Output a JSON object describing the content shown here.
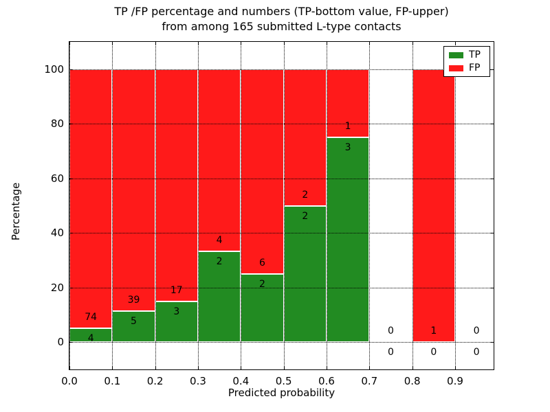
{
  "chart_data": {
    "type": "bar",
    "stacked": true,
    "title_lines": [
      "TP /FP percentage and numbers (TP-bottom value, FP-upper)",
      "from among 165 submitted L-type contacts"
    ],
    "title": "TP /FP percentage and numbers (TP-bottom value, FP-upper)\nfrom among 165 submitted L-type contacts",
    "xlabel": "Predicted probability",
    "ylabel": "Percentage",
    "xlim": [
      0.0,
      1.0
    ],
    "ylim": [
      -10,
      110
    ],
    "x_ticks": [
      "0.0",
      "0.1",
      "0.2",
      "0.3",
      "0.4",
      "0.5",
      "0.6",
      "0.7",
      "0.8",
      "0.9"
    ],
    "y_ticks": [
      "0",
      "20",
      "40",
      "60",
      "80",
      "100"
    ],
    "grid": "dotted",
    "legend_position": "upper right",
    "total_contacts": 165,
    "legend": [
      {
        "label": "TP",
        "color": "#228b22"
      },
      {
        "label": "FP",
        "color": "#ff1a1a"
      }
    ],
    "bins": [
      {
        "range": [
          0.0,
          0.1
        ],
        "tp": 4,
        "fp": 74
      },
      {
        "range": [
          0.1,
          0.2
        ],
        "tp": 5,
        "fp": 39
      },
      {
        "range": [
          0.2,
          0.3
        ],
        "tp": 3,
        "fp": 17
      },
      {
        "range": [
          0.3,
          0.4
        ],
        "tp": 2,
        "fp": 4
      },
      {
        "range": [
          0.4,
          0.5
        ],
        "tp": 2,
        "fp": 6
      },
      {
        "range": [
          0.5,
          0.6
        ],
        "tp": 2,
        "fp": 2
      },
      {
        "range": [
          0.6,
          0.7
        ],
        "tp": 3,
        "fp": 1
      },
      {
        "range": [
          0.7,
          0.8
        ],
        "tp": 0,
        "fp": 0
      },
      {
        "range": [
          0.8,
          0.9
        ],
        "tp": 0,
        "fp": 1
      },
      {
        "range": [
          0.9,
          1.0
        ],
        "tp": 0,
        "fp": 0
      }
    ]
  },
  "colors": {
    "background": "#ffffff",
    "text": "#000000",
    "spine": "#000000",
    "bar_edge": "#ffffff"
  }
}
